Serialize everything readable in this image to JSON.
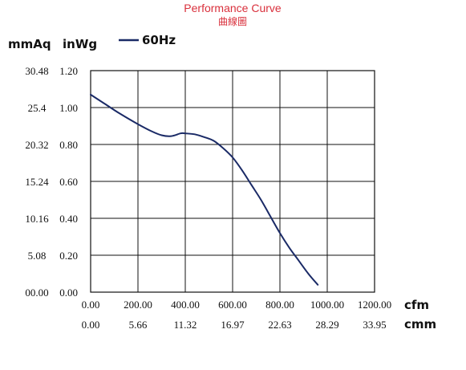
{
  "title": {
    "english": "Performance Curve",
    "chinese": "曲線圖"
  },
  "units": {
    "left_outer": "mmAq",
    "left_inner": "inWg",
    "bottom_top": "cfm",
    "bottom_bottom": "cmm"
  },
  "legend": {
    "label": "60Hz"
  },
  "colors": {
    "curve": "#1a2a66",
    "title": "#d9303c",
    "axis": "#111111"
  },
  "chart_data": {
    "type": "line",
    "title": "Performance Curve",
    "xlabel": "cfm",
    "ylabel": "inWg",
    "xlim": [
      0,
      1200
    ],
    "ylim": [
      0,
      1.2
    ],
    "grid": true,
    "legend_position": "top-left",
    "x_ticks": [
      "0.00",
      "200.00",
      "400.00",
      "600.00",
      "800.00",
      "1000.00",
      "1200.00"
    ],
    "x_ticks_secondary": [
      "0.00",
      "5.66",
      "11.32",
      "16.97",
      "22.63",
      "28.29",
      "33.95"
    ],
    "y_ticks": [
      "0.00",
      "0.20",
      "0.40",
      "0.60",
      "0.80",
      "1.00",
      "1.20"
    ],
    "y_ticks_secondary": [
      "00.00",
      "5.08",
      "10.16",
      "15.24",
      "20.32",
      "25.4",
      "30.48"
    ],
    "series": [
      {
        "name": "60Hz",
        "x": [
          0,
          60,
          120,
          200,
          260,
          300,
          340,
          380,
          400,
          440,
          480,
          520,
          560,
          600,
          640,
          680,
          720,
          760,
          800,
          840,
          880,
          920,
          960
        ],
        "y": [
          1.07,
          1.02,
          0.97,
          0.91,
          0.87,
          0.85,
          0.845,
          0.86,
          0.86,
          0.855,
          0.84,
          0.82,
          0.78,
          0.73,
          0.66,
          0.58,
          0.5,
          0.41,
          0.32,
          0.24,
          0.17,
          0.1,
          0.04
        ]
      }
    ]
  }
}
